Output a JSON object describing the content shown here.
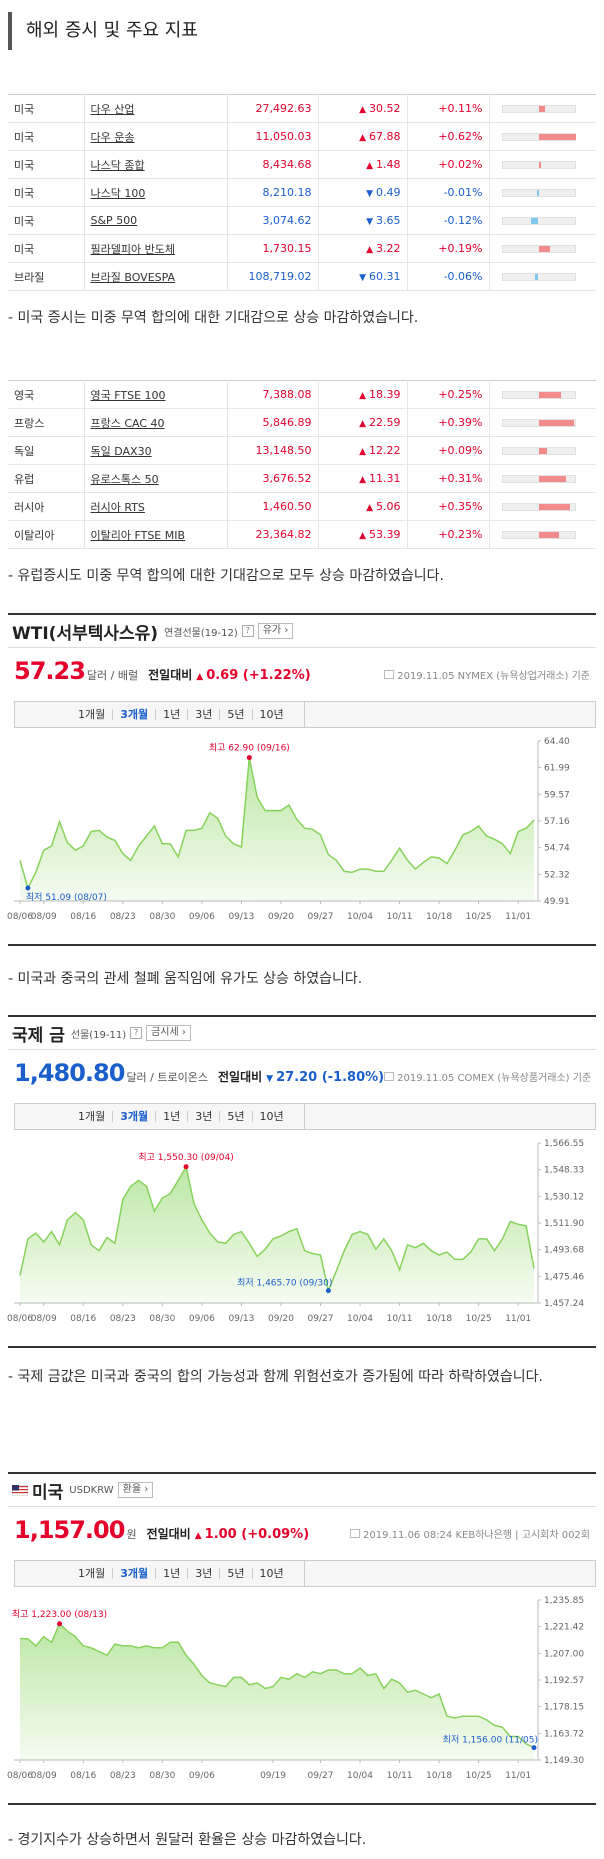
{
  "title": "해외 증시 및 주요 지표",
  "tables": [
    {
      "rows": [
        {
          "country": "미국",
          "name": "다우 산업",
          "price": "27,492.63",
          "change": "30.52",
          "direction": "up",
          "percent": "+0.11%"
        },
        {
          "country": "미국",
          "name": "다우 운송",
          "price": "11,050.03",
          "change": "67.88",
          "direction": "up",
          "percent": "+0.62%"
        },
        {
          "country": "미국",
          "name": "나스닥 종합",
          "price": "8,434.68",
          "change": "1.48",
          "direction": "up",
          "percent": "+0.02%"
        },
        {
          "country": "미국",
          "name": "나스닥 100",
          "price": "8,210.18",
          "change": "0.49",
          "direction": "down",
          "percent": "-0.01%"
        },
        {
          "country": "미국",
          "name": "S&P 500",
          "price": "3,074.62",
          "change": "3.65",
          "direction": "down",
          "percent": "-0.12%"
        },
        {
          "country": "미국",
          "name": "필라델피아 반도체",
          "price": "1,730.15",
          "change": "3.22",
          "direction": "up",
          "percent": "+0.19%"
        },
        {
          "country": "브라질",
          "name": "브라질 BOVESPA",
          "price": "108,719.02",
          "change": "60.31",
          "direction": "down",
          "percent": "-0.06%"
        }
      ]
    },
    {
      "rows": [
        {
          "country": "영국",
          "name": "영국 FTSE 100",
          "price": "7,388.08",
          "change": "18.39",
          "direction": "up",
          "percent": "+0.25%"
        },
        {
          "country": "프랑스",
          "name": "프랑스 CAC 40",
          "price": "5,846.89",
          "change": "22.59",
          "direction": "up",
          "percent": "+0.39%"
        },
        {
          "country": "독일",
          "name": "독일 DAX30",
          "price": "13,148.50",
          "change": "12.22",
          "direction": "up",
          "percent": "+0.09%"
        },
        {
          "country": "유럽",
          "name": "유로스톡스 50",
          "price": "3,676.52",
          "change": "11.31",
          "direction": "up",
          "percent": "+0.31%"
        },
        {
          "country": "러시아",
          "name": "러시아 RTS",
          "price": "1,460.50",
          "change": "5.06",
          "direction": "up",
          "percent": "+0.35%"
        },
        {
          "country": "이탈리아",
          "name": "이탈리아 FTSE MIB",
          "price": "23,364.82",
          "change": "53.39",
          "direction": "up",
          "percent": "+0.23%"
        }
      ]
    }
  ],
  "notes": [
    "- 미국 증시는 미중 무역 합의에 대한 기대감으로 상승 마감하였습니다.",
    "- 유럽증시도 미중 무역 합의에 대한 기대감으로 모두 상승 마감하였습니다.",
    "- 미국과 중국의 관세 철폐 움직임에 유가도 상승 하였습니다.",
    "- 국제 금값은 미국과 중국의 합의 가능성과 함께 위험선호가 증가됨에 따라 하락하였습니다.",
    "- 경기지수가 상승하면서 원달러 환율은 상승 마감하였습니다."
  ],
  "chart_data": [
    {
      "type": "line",
      "title": "WTI(서부텍사스유)",
      "subtitle": "연결선물(19-12)",
      "button": "유가",
      "price": "57.23",
      "unit": "달러 / 배럴",
      "compare_label": "전일대비",
      "change": "0.69 (+1.22%)",
      "direction": "up",
      "source": "2019.11.05 NYMEX (뉴욕상업거래소) 기준",
      "tabs": [
        "1개월",
        "3개월",
        "1년",
        "3년",
        "5년",
        "10년"
      ],
      "color": "#86d35b",
      "categories": [
        "08/06",
        null,
        null,
        "08/09",
        null,
        null,
        null,
        null,
        "08/16",
        null,
        null,
        null,
        null,
        "08/23",
        null,
        null,
        null,
        null,
        "08/30",
        null,
        null,
        null,
        null,
        "09/06",
        null,
        null,
        null,
        null,
        "09/13",
        null,
        null,
        null,
        null,
        "09/20",
        null,
        null,
        null,
        null,
        "09/27",
        null,
        null,
        null,
        null,
        "10/04",
        null,
        null,
        null,
        null,
        "10/11",
        null,
        null,
        null,
        null,
        "10/18",
        null,
        null,
        null,
        null,
        "10/25",
        null,
        null,
        null,
        null,
        "11/01",
        null,
        null
      ],
      "values": [
        53.6,
        51.09,
        52.5,
        54.5,
        54.9,
        57.1,
        55.2,
        54.5,
        54.9,
        56.2,
        56.3,
        55.7,
        55.4,
        54.2,
        53.6,
        54.9,
        55.8,
        56.7,
        55.1,
        55.1,
        53.9,
        56.3,
        56.3,
        56.5,
        57.9,
        57.4,
        55.8,
        55.1,
        54.8,
        62.9,
        59.3,
        58.1,
        58.1,
        58.1,
        58.6,
        57.3,
        56.5,
        56.4,
        55.9,
        54.1,
        53.6,
        52.6,
        52.5,
        52.8,
        52.8,
        52.6,
        52.6,
        53.6,
        54.7,
        53.6,
        52.8,
        53.4,
        53.9,
        53.8,
        53.3,
        54.5,
        55.9,
        56.2,
        56.7,
        55.8,
        55.5,
        55.1,
        54.2,
        56.2,
        56.5,
        57.23
      ],
      "ylim": [
        49.91,
        64.4
      ],
      "yticks": [
        {
          "value": 64.4,
          "label": "64.40"
        },
        61.99,
        59.57,
        57.16,
        54.74,
        52.32,
        49.91
      ],
      "max_label": "최고 62.90 (09/16)",
      "min_label": "최저 51.09 (08/07)"
    },
    {
      "type": "line",
      "title": "국제 금",
      "subtitle": "선물(19-11)",
      "button": "금시세",
      "price": "1,480.80",
      "unit": "달러 / 트로이온스",
      "compare_label": "전일대비",
      "change": "27.20 (-1.80%)",
      "direction": "down",
      "source": "2019.11.05 COMEX (뉴욕상품거래소) 기준",
      "tabs": [
        "1개월",
        "3개월",
        "1년",
        "3년",
        "5년",
        "10년"
      ],
      "color": "#86d35b",
      "categories": [
        "08/06",
        null,
        null,
        "08/09",
        null,
        null,
        null,
        null,
        "08/16",
        null,
        null,
        null,
        null,
        "08/23",
        null,
        null,
        null,
        null,
        "08/30",
        null,
        null,
        null,
        null,
        "09/06",
        null,
        null,
        null,
        null,
        "09/13",
        null,
        null,
        null,
        null,
        "09/20",
        null,
        null,
        null,
        null,
        "09/27",
        null,
        null,
        null,
        null,
        "10/04",
        null,
        null,
        null,
        null,
        "10/11",
        null,
        null,
        null,
        null,
        "10/18",
        null,
        null,
        null,
        null,
        "10/25",
        null,
        null,
        null,
        null,
        "11/01",
        null,
        null
      ],
      "values": [
        1476,
        1501,
        1505,
        1499,
        1506,
        1497,
        1514,
        1519,
        1514,
        1497,
        1493,
        1502,
        1498,
        1528,
        1537,
        1541,
        1537,
        1520,
        1529,
        1532,
        1541,
        1550.3,
        1525,
        1514,
        1505,
        1499,
        1498,
        1504,
        1506,
        1498,
        1489,
        1494,
        1501,
        1503,
        1506,
        1508,
        1493,
        1491,
        1490,
        1465.7,
        1479,
        1493,
        1504,
        1506,
        1504,
        1494,
        1501,
        1493,
        1480,
        1497,
        1495,
        1498,
        1493,
        1490,
        1492,
        1487,
        1487,
        1492,
        1501,
        1501,
        1493,
        1501,
        1513,
        1511,
        1510,
        1480.8
      ],
      "ylim": [
        1457.24,
        1566.55
      ],
      "yticks": [
        {
          "value": 1566.55,
          "label": "1,566.55"
        },
        {
          "value": 1548.33,
          "label": "1,548.33"
        },
        {
          "value": 1530.12,
          "label": "1,530.12"
        },
        {
          "value": 1511.9,
          "label": "1,511.90"
        },
        {
          "value": 1493.68,
          "label": "1,493.68"
        },
        {
          "value": 1475.46,
          "label": "1,475.46"
        },
        {
          "value": 1457.24,
          "label": "1,457.24"
        }
      ],
      "max_label": "최고 1,550.30 (09/04)",
      "min_label": "최저 1,465.70 (09/30)"
    },
    {
      "type": "line",
      "title": "미국",
      "subtitle": "USDKRW",
      "button": "환율",
      "price": "1,157.00",
      "unit": "원",
      "compare_label": "전일대비",
      "change": "1.00 (+0.09%)",
      "direction": "up",
      "source": "2019.11.06 08:24 KEB하나은행 | 고시회차 002회",
      "tabs": [
        "1개월",
        "3개월",
        "1년",
        "3년",
        "5년",
        "10년"
      ],
      "color": "#86d35b",
      "categories": [
        "08/06",
        null,
        null,
        "08/09",
        null,
        null,
        null,
        null,
        "08/16",
        null,
        null,
        null,
        null,
        "08/23",
        null,
        null,
        null,
        null,
        "08/30",
        null,
        null,
        null,
        null,
        "09/06",
        null,
        null,
        null,
        null,
        null,
        null,
        null,
        null,
        "09/19",
        null,
        null,
        null,
        null,
        null,
        "09/27",
        null,
        null,
        null,
        null,
        "10/04",
        null,
        null,
        null,
        null,
        "10/11",
        null,
        null,
        null,
        null,
        "10/18",
        null,
        null,
        null,
        null,
        "10/25",
        null,
        null,
        null,
        null,
        "11/01",
        null,
        null
      ],
      "values": [
        1215,
        1214.9,
        1211,
        1216,
        1213,
        1223,
        1219,
        1216,
        1211,
        1210,
        1208,
        1206,
        1212,
        1211,
        1211,
        1210,
        1211,
        1210,
        1210,
        1213,
        1213,
        1206,
        1201,
        1195,
        1191,
        1190,
        1189,
        1194,
        1194,
        1190,
        1191,
        1188,
        1189,
        1194,
        1193,
        1196,
        1194,
        1197,
        1196,
        1198,
        1198,
        1196,
        1196,
        1199,
        1195,
        1196,
        1188,
        1193,
        1191,
        1186,
        1187,
        1185,
        1183,
        1185,
        1173,
        1172,
        1173,
        1173,
        1173,
        1171,
        1168,
        1167,
        1162,
        1162,
        1158,
        1156
      ],
      "ylim": [
        1149.3,
        1235.85
      ],
      "yticks": [
        {
          "value": 1235.85,
          "label": "1,235.85"
        },
        {
          "value": 1221.42,
          "label": "1,221.42"
        },
        {
          "value": 1207,
          "label": "1,207.00"
        },
        {
          "value": 1192.57,
          "label": "1,192.57"
        },
        {
          "value": 1178.15,
          "label": "1,178.15"
        },
        {
          "value": 1163.72,
          "label": "1,163.72"
        },
        {
          "value": 1149.3,
          "label": "1,149.30"
        }
      ],
      "max_label": "최고 1,223.00 (08/13)",
      "min_label": "최저 1,156.00 (11/05)"
    }
  ]
}
